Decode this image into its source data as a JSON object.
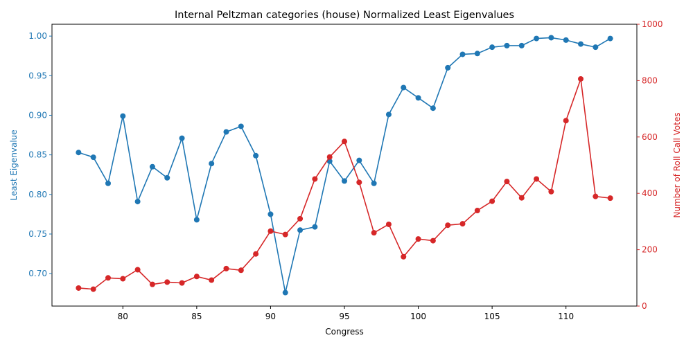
{
  "chart_data": {
    "type": "line",
    "title": "Internal Peltzman categories (house) Normalized Least Eigenvalues",
    "xlabel": "Congress",
    "y_left_label": "Least Eigenvalue",
    "y_right_label": "Number of Roll Call Votes",
    "x": [
      77,
      78,
      79,
      80,
      81,
      82,
      83,
      84,
      85,
      86,
      87,
      88,
      89,
      90,
      91,
      92,
      93,
      94,
      95,
      96,
      97,
      98,
      99,
      100,
      101,
      102,
      103,
      104,
      105,
      106,
      107,
      108,
      109,
      110,
      111,
      112,
      113
    ],
    "xlim": [
      75.2,
      114.8
    ],
    "x_ticks": [
      80,
      85,
      90,
      95,
      100,
      105,
      110
    ],
    "y_left_lim": [
      0.659,
      1.015
    ],
    "y_left_ticks": [
      "0.70",
      "0.75",
      "0.80",
      "0.85",
      "0.90",
      "0.95",
      "1.00"
    ],
    "y_right_lim": [
      0,
      1000
    ],
    "y_right_ticks": [
      0,
      200,
      400,
      600,
      800,
      1000
    ],
    "grid": false,
    "series": [
      {
        "name": "",
        "axis": "left",
        "color": "#1f77b4",
        "values": [
          0.853,
          0.847,
          0.814,
          0.899,
          0.791,
          0.835,
          0.821,
          0.871,
          0.768,
          0.839,
          0.879,
          0.886,
          0.849,
          0.775,
          0.676,
          0.755,
          0.759,
          0.842,
          0.817,
          0.843,
          0.814,
          0.901,
          0.935,
          0.922,
          0.909,
          0.96,
          0.977,
          0.978,
          0.986,
          0.988,
          0.988,
          0.997,
          0.998,
          0.995,
          0.99,
          0.986,
          0.997
        ]
      },
      {
        "name": "",
        "axis": "right",
        "color": "#d62728",
        "values": [
          64,
          60,
          100,
          97,
          129,
          77,
          85,
          82,
          105,
          92,
          133,
          127,
          185,
          266,
          254,
          310,
          451,
          529,
          584,
          439,
          260,
          290,
          175,
          238,
          232,
          287,
          292,
          339,
          372,
          442,
          384,
          451,
          406,
          658,
          806,
          389,
          383
        ]
      }
    ]
  }
}
